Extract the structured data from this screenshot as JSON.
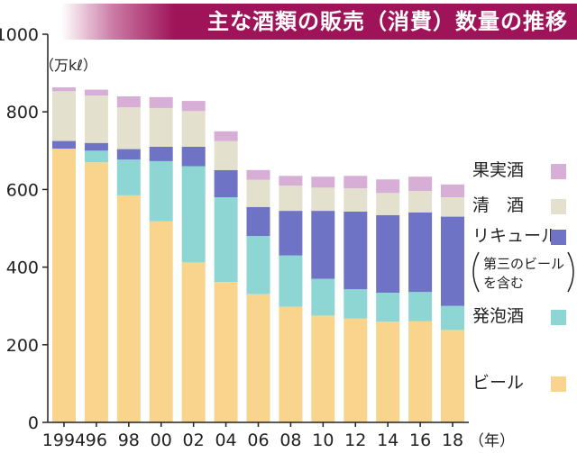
{
  "chart_data": {
    "type": "bar",
    "stacked": true,
    "title": "主な酒類の販売（消費）数量の推移",
    "ylabel": "（万kℓ）",
    "xlabel": "（年）",
    "ylim": [
      0,
      1000
    ],
    "yticks": [
      0,
      200,
      400,
      600,
      800,
      1000
    ],
    "categories": [
      "1994",
      "96",
      "98",
      "00",
      "02",
      "04",
      "06",
      "08",
      "10",
      "12",
      "14",
      "16",
      "18"
    ],
    "series": [
      {
        "name": "ビール",
        "color": "#f9d48c",
        "values": [
          705,
          670,
          585,
          518,
          412,
          362,
          330,
          298,
          275,
          268,
          259,
          261,
          238
        ]
      },
      {
        "name": "発泡酒",
        "color": "#8dd6d4",
        "values": [
          0,
          30,
          92,
          155,
          248,
          218,
          150,
          132,
          95,
          75,
          75,
          75,
          62
        ]
      },
      {
        "name": "リキュール",
        "color": "#6e73c6",
        "values": [
          20,
          20,
          27,
          37,
          50,
          70,
          75,
          115,
          175,
          200,
          200,
          205,
          230
        ]
      },
      {
        "name": "清酒",
        "color": "#e3e0ce",
        "values": [
          128,
          122,
          108,
          100,
          92,
          75,
          70,
          65,
          60,
          60,
          57,
          55,
          50
        ]
      },
      {
        "name": "果実酒",
        "color": "#d7aed6",
        "values": [
          10,
          15,
          28,
          28,
          26,
          25,
          25,
          25,
          28,
          32,
          35,
          37,
          33
        ]
      }
    ],
    "legend": {
      "placement": "right",
      "order": [
        "果実酒",
        "清酒",
        "リキュール",
        "発泡酒",
        "ビール"
      ],
      "labels": {
        "果実酒": "果実酒",
        "清酒": "清　酒",
        "リキュール": "リキュール",
        "発泡酒": "発泡酒",
        "ビール": "ビール"
      },
      "note_line1": "第三のビール",
      "note_line2": "を含む"
    }
  }
}
